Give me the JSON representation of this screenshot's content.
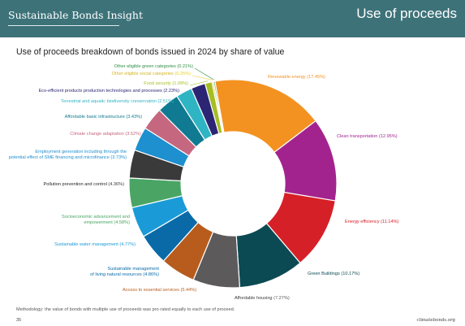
{
  "header": {
    "brand": "Sustainable Bonds Insight",
    "section": "Use of proceeds",
    "background_color": "#3d7279"
  },
  "footer": {
    "note": "Methodology: the value of bonds with multiple use of proceeds was pro rated equally to each use of proceed.",
    "page": "35",
    "site": "climatebonds.org"
  },
  "chart_data": {
    "type": "pie",
    "title": "Use of proceeds breakdown of bonds issued in 2024 by share of value",
    "donut": true,
    "unit": "%",
    "slices": [
      {
        "label": "Renewable energy",
        "value": 17.45,
        "value_text": "(17.45%)",
        "color": "#f39221"
      },
      {
        "label": "Clean transportation",
        "value": 12.95,
        "value_text": "(12.95%)",
        "color": "#a3238e"
      },
      {
        "label": "Energy efficiency",
        "value": 11.14,
        "value_text": "(11.14%)",
        "color": "#d62027"
      },
      {
        "label": "Green Buildings",
        "value": 10.17,
        "value_text": "(10.17%)",
        "color": "#0c4a53"
      },
      {
        "label": "Affordable housing",
        "value": 7.27,
        "value_text": "(7.27%)",
        "color": "#5c5a5b"
      },
      {
        "label": "Access to essential services",
        "value": 5.44,
        "value_text": "(5.44%)",
        "color": "#b75c1d"
      },
      {
        "label": "Sustainable management of living natural resources",
        "value": 4.86,
        "value_text": "(4.86%)",
        "color": "#0a6aa8"
      },
      {
        "label": "Sustainable water management",
        "value": 4.77,
        "value_text": "(4.77%)",
        "color": "#1a9bd7"
      },
      {
        "label": "Socioeconomic advancement and empowerment",
        "value": 4.58,
        "value_text": "(4.58%)",
        "color": "#4aa564"
      },
      {
        "label": "Pollution prevention and control",
        "value": 4.36,
        "value_text": "(4.36%)",
        "color": "#3a3a3a"
      },
      {
        "label": "Employment generation including through the potential effect of SME financing and microfinance",
        "value": 3.73,
        "value_text": "(3.73%)",
        "color": "#1e8fcf"
      },
      {
        "label": "Climate change adaptation",
        "value": 3.52,
        "value_text": "(3.52%)",
        "color": "#c5677f"
      },
      {
        "label": "Affordable basic infrastructure",
        "value": 3.43,
        "value_text": "(3.43%)",
        "color": "#0f7a91"
      },
      {
        "label": "Terrestrial and aquatic biodiversity conservation",
        "value": 2.51,
        "value_text": "(2.51%)",
        "color": "#2fb4c4"
      },
      {
        "label": "Eco-efficient products production technologies and processes",
        "value": 2.23,
        "value_text": "(2.23%)",
        "color": "#2c2573"
      },
      {
        "label": "Food security",
        "value": 1.09,
        "value_text": "(1.09%)",
        "color": "#a6be24"
      },
      {
        "label": "Other eligible social categories",
        "value": 0.25,
        "value_text": "(0.25%)",
        "color": "#e7cf35"
      },
      {
        "label": "Other eligible green categories",
        "value": 0.21,
        "value_text": "(0.21%)",
        "color": "#2f8f43"
      }
    ]
  }
}
